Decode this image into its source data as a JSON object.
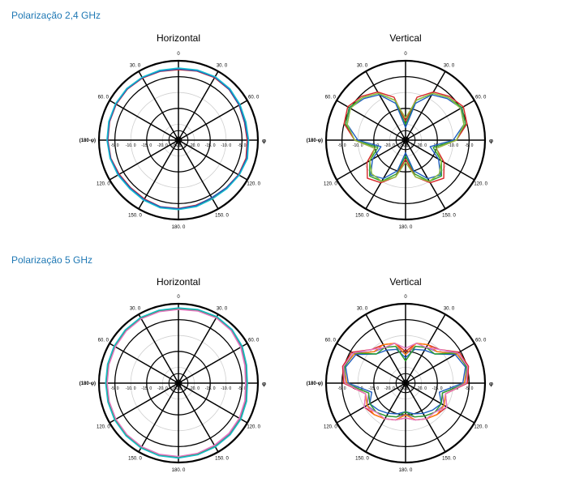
{
  "sections": [
    {
      "title": "Polarização 2,4 GHz"
    },
    {
      "title": "Polarização 5 GHz"
    }
  ],
  "chart_data": [
    {
      "type": "polar-line",
      "title": "Horizontal",
      "section": "Polarização 2,4 GHz",
      "angle_labels": [
        "0",
        "30. 0",
        "60. 0",
        "120. 0",
        "150. 0",
        "180. 0",
        "150. 0",
        "120. 0",
        "60. 0",
        "30. 0"
      ],
      "left_label": "(180-φ)",
      "right_label": "φ",
      "radial_labels": [
        "-5. 0",
        "-10. 0",
        "-15. 0",
        "-20. 0",
        "-25. 0",
        "-25. 0",
        "-20. 0",
        "-15. 0",
        "-10. 0",
        "-5. 0"
      ],
      "rlim": [
        -25,
        0
      ],
      "series": [
        {
          "color": "#2ca02c",
          "values": [
            -2.5,
            -2.2,
            -2,
            -2.2,
            -2.8,
            -3.2,
            -3,
            -2.6,
            -3,
            -3.6,
            -3.8,
            -3.5,
            -3.2,
            -3,
            -3.3,
            -3.5,
            -3.2,
            -2.8,
            -2.6,
            -2.4,
            -2.2,
            -2.1,
            -2.2,
            -2.4
          ]
        },
        {
          "color": "#d62728",
          "values": [
            -2.8,
            -2.5,
            -2.3,
            -2.5,
            -3,
            -3.5,
            -3.4,
            -3,
            -3.2,
            -3.8,
            -4,
            -3.8,
            -3.5,
            -3.3,
            -3.6,
            -3.8,
            -3.5,
            -3,
            -2.8,
            -2.6,
            -2.4,
            -2.3,
            -2.4,
            -2.6
          ]
        },
        {
          "color": "#1f5fbf",
          "values": [
            -2.6,
            -2.4,
            -2.1,
            -2.4,
            -2.9,
            -3.4,
            -3.1,
            -2.8,
            -3.1,
            -3.7,
            -4.1,
            -3.6,
            -3.4,
            -3.2,
            -3.4,
            -3.6,
            -3.3,
            -2.9,
            -2.7,
            -2.5,
            -2.3,
            -2.2,
            -2.3,
            -2.5
          ]
        },
        {
          "color": "#17becf",
          "values": [
            -2.3,
            -2.1,
            -1.9,
            -2.1,
            -2.6,
            -3,
            -2.9,
            -2.5,
            -2.9,
            -3.4,
            -3.6,
            -3.3,
            -3.1,
            -2.9,
            -3.1,
            -3.3,
            -3,
            -2.7,
            -2.5,
            -2.3,
            -2.1,
            -2,
            -2.1,
            -2.2
          ]
        }
      ]
    },
    {
      "type": "polar-line",
      "title": "Vertical",
      "section": "Polarização 2,4 GHz",
      "angle_labels": [
        "0",
        "30. 0",
        "60. 0",
        "120. 0",
        "150. 0",
        "180. 0",
        "150. 0",
        "120. 0",
        "60. 0",
        "30. 0"
      ],
      "left_label": "(180-φ)",
      "right_label": "φ",
      "radial_labels": [
        "-5. 0",
        "-10. 0",
        "-15. 0",
        "-20. 0",
        "-25. 0",
        "-25. 0",
        "-20. 0",
        "-15. 0",
        "-10. 0",
        "-5. 0"
      ],
      "rlim": [
        -25,
        0
      ],
      "series": [
        {
          "color": "#2ca02c",
          "values": [
            -20,
            -12,
            -8,
            -6,
            -4.5,
            -5.5,
            -9,
            -16,
            -12,
            -9,
            -10,
            -14,
            -20,
            -14,
            -10,
            -9,
            -12,
            -16,
            -9,
            -5.5,
            -4.5,
            -6,
            -8,
            -12
          ]
        },
        {
          "color": "#d62728",
          "values": [
            -19,
            -11,
            -7.5,
            -5.5,
            -4,
            -5,
            -9,
            -15,
            -11,
            -8,
            -9.5,
            -13,
            -19,
            -13,
            -9.5,
            -8,
            -11,
            -15,
            -9,
            -5,
            -4,
            -5.5,
            -7.5,
            -11
          ]
        },
        {
          "color": "#1f5fbf",
          "values": [
            -21,
            -13,
            -8.5,
            -6.5,
            -4.8,
            -6,
            -10,
            -17,
            -13,
            -9.5,
            -11,
            -15,
            -21,
            -15,
            -11,
            -9.5,
            -13,
            -17,
            -10,
            -6,
            -4.8,
            -6.5,
            -8.5,
            -13
          ]
        },
        {
          "color": "#8fbf3f",
          "values": [
            -18,
            -12,
            -8,
            -6,
            -5,
            -6,
            -9,
            -15,
            -12,
            -10,
            -10,
            -13,
            -18,
            -13,
            -10,
            -10,
            -12,
            -15,
            -9,
            -6,
            -5,
            -6,
            -8,
            -12
          ]
        }
      ]
    },
    {
      "type": "polar-line",
      "title": "Horizontal",
      "section": "Polarização 5 GHz",
      "angle_labels": [
        "0",
        "30. 0",
        "60. 0",
        "120. 0",
        "150. 0",
        "180. 0",
        "150. 0",
        "120. 0",
        "60. 0",
        "30. 0"
      ],
      "left_label": "(180-φ)",
      "right_label": "φ",
      "radial_labels": [
        "-5. 0",
        "-10. 0",
        "-15. 0",
        "-20. 0",
        "-25. 0",
        "-25. 0",
        "-20. 0",
        "-15. 0",
        "-10. 0",
        "-5. 0"
      ],
      "rlim": [
        -25,
        0
      ],
      "series": [
        {
          "color": "#1f5fbf",
          "values": [
            -1.5,
            -1.2,
            -1,
            -1.3,
            -2,
            -3,
            -3.5,
            -3,
            -2.5,
            -2.2,
            -2,
            -1.8,
            -1.6,
            -1.5,
            -1.6,
            -1.8,
            -2,
            -2.2,
            -2.3,
            -2.1,
            -1.8,
            -1.5,
            -1.3,
            -1.4
          ]
        },
        {
          "color": "#d62728",
          "values": [
            -1.7,
            -1.4,
            -1.2,
            -1.5,
            -2.3,
            -3.3,
            -3.8,
            -3.3,
            -2.8,
            -2.5,
            -2.3,
            -2,
            -1.8,
            -1.7,
            -1.8,
            -2,
            -2.2,
            -2.4,
            -2.5,
            -2.3,
            -2,
            -1.7,
            -1.5,
            -1.6
          ]
        },
        {
          "color": "#9467bd",
          "values": [
            -1.6,
            -1.3,
            -1.1,
            -1.4,
            -2.2,
            -3.1,
            -3.6,
            -3.1,
            -2.6,
            -2.4,
            -2.1,
            -1.9,
            -1.7,
            -1.6,
            -1.7,
            -1.9,
            -2.1,
            -2.3,
            -2.4,
            -2.2,
            -1.9,
            -1.6,
            -1.4,
            -1.5
          ]
        },
        {
          "color": "#e377c2",
          "values": [
            -1.8,
            -1.5,
            -1.3,
            -1.6,
            -2.4,
            -3.4,
            -3.9,
            -3.4,
            -2.9,
            -2.6,
            -2.4,
            -2.1,
            -1.9,
            -1.8,
            -1.9,
            -2.1,
            -2.3,
            -2.5,
            -2.6,
            -2.4,
            -2.1,
            -1.8,
            -1.6,
            -1.7
          ]
        },
        {
          "color": "#2ca02c",
          "values": [
            -1.4,
            -1.1,
            -0.9,
            -1.2,
            -1.9,
            -2.9,
            -3.4,
            -2.9,
            -2.4,
            -2.1,
            -1.9,
            -1.7,
            -1.5,
            -1.4,
            -1.5,
            -1.7,
            -1.9,
            -2.1,
            -2.2,
            -2,
            -1.7,
            -1.4,
            -1.2,
            -1.3
          ]
        },
        {
          "color": "#17becf",
          "values": [
            -1.3,
            -1,
            -0.8,
            -1.1,
            -1.8,
            -2.8,
            -3.3,
            -2.8,
            -2.3,
            -2,
            -1.8,
            -1.6,
            -1.4,
            -1.3,
            -1.4,
            -1.6,
            -1.8,
            -2,
            -2.1,
            -1.9,
            -1.6,
            -1.3,
            -1.1,
            -1.2
          ]
        }
      ]
    },
    {
      "type": "polar-line",
      "title": "Vertical",
      "section": "Polarização 5 GHz",
      "angle_labels": [
        "0",
        "30. 0",
        "60. 0",
        "120. 0",
        "150. 0",
        "180. 0",
        "150. 0",
        "120. 0",
        "60. 0",
        "30. 0"
      ],
      "left_label": "(180-φ)",
      "right_label": "φ",
      "radial_labels": [
        "-5. 0",
        "-10. 0",
        "-15. 0",
        "-20. 0",
        "-25. 0",
        "-25. 0",
        "-20. 0",
        "-15. 0",
        "-10. 0",
        "-5. 0"
      ],
      "rlim": [
        -25,
        0
      ],
      "series": [
        {
          "color": "#9467bd",
          "values": [
            -16,
            -13,
            -12,
            -11,
            -6,
            -5,
            -6,
            -13,
            -11,
            -12,
            -13,
            -14,
            -15,
            -14,
            -13,
            -12,
            -11,
            -13,
            -6,
            -5,
            -6,
            -11,
            -12,
            -13
          ]
        },
        {
          "color": "#d62728",
          "values": [
            -15,
            -12,
            -11,
            -10,
            -5.5,
            -4.5,
            -5.5,
            -12,
            -10,
            -11,
            -12,
            -13,
            -14,
            -13,
            -12,
            -11,
            -10,
            -12,
            -5.5,
            -4.5,
            -5.5,
            -10,
            -11,
            -12
          ]
        },
        {
          "color": "#1f5fbf",
          "values": [
            -17,
            -14,
            -13,
            -12,
            -7,
            -5.5,
            -7,
            -14,
            -12,
            -13,
            -14,
            -15,
            -16,
            -15,
            -14,
            -13,
            -12,
            -14,
            -7,
            -5.5,
            -7,
            -12,
            -13,
            -14
          ]
        },
        {
          "color": "#ff7f0e",
          "values": [
            -16,
            -12,
            -11,
            -11,
            -6.5,
            -5,
            -6.5,
            -12,
            -11,
            -11,
            -12,
            -13,
            -15,
            -13,
            -12,
            -11,
            -11,
            -12,
            -6.5,
            -5,
            -6.5,
            -11,
            -11,
            -12
          ]
        },
        {
          "color": "#2ca02c",
          "values": [
            -18,
            -13,
            -12,
            -12,
            -6,
            -5.2,
            -6,
            -13,
            -12,
            -12,
            -13,
            -14,
            -16,
            -14,
            -13,
            -12,
            -12,
            -13,
            -6,
            -5.2,
            -6,
            -12,
            -12,
            -13
          ]
        },
        {
          "color": "#e377c2",
          "values": [
            -14,
            -12,
            -12,
            -10,
            -6,
            -4.8,
            -6,
            -12,
            -10,
            -12,
            -12,
            -13,
            -14,
            -13,
            -12,
            -12,
            -10,
            -12,
            -6,
            -4.8,
            -6,
            -10,
            -12,
            -12
          ]
        }
      ]
    }
  ]
}
